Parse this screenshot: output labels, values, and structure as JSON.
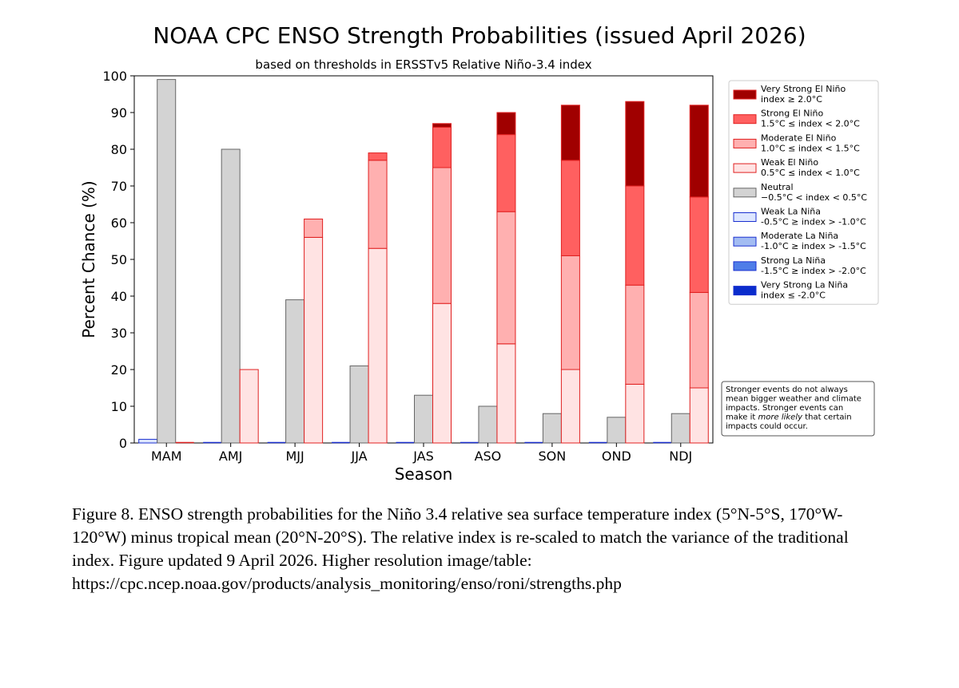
{
  "chart_data": {
    "type": "bar",
    "title": "NOAA CPC ENSO Strength Probabilities (issued April 2026)",
    "subtitle": "based on thresholds in ERSSTv5 Relative Niño-3.4 index",
    "xlabel": "Season",
    "ylabel": "Percent Chance (%)",
    "ylim": [
      0,
      100
    ],
    "yticks": [
      "0",
      "10",
      "20",
      "30",
      "40",
      "50",
      "60",
      "70",
      "80",
      "90",
      "100"
    ],
    "categories": [
      "MAM",
      "AMJ",
      "MJJ",
      "JJA",
      "JAS",
      "ASO",
      "SON",
      "OND",
      "NDJ"
    ],
    "grid": false,
    "legend_position": "right",
    "la_nina_series": [
      {
        "name": "Weak La Niña",
        "range": "-0.5°C ≥ index > -1.0°C",
        "color": "#dde6ff",
        "values": [
          1,
          0,
          0,
          0,
          0,
          0,
          0,
          0,
          0
        ]
      },
      {
        "name": "Moderate La Niña",
        "range": "-1.0°C ≥ index > -1.5°C",
        "color": "#a3bcf2",
        "values": [
          0,
          0,
          0,
          0,
          0,
          0,
          0,
          0,
          0
        ]
      },
      {
        "name": "Strong La Niña",
        "range": "-1.5°C ≥ index > -2.0°C",
        "color": "#4f7de8",
        "values": [
          0,
          0,
          0,
          0,
          0,
          0,
          0,
          0,
          0
        ]
      },
      {
        "name": "Very Strong La Niña",
        "range": "index ≤ -2.0°C",
        "color": "#0a2ccc",
        "values": [
          0,
          0,
          0,
          0,
          0,
          0,
          0,
          0,
          0
        ]
      }
    ],
    "neutral_series": {
      "name": "Neutral",
      "range": "−0.5°C < index < 0.5°C",
      "color": "#d3d3d3",
      "values": [
        99,
        80,
        39,
        21,
        13,
        10,
        8,
        7,
        8
      ]
    },
    "el_nino_series": [
      {
        "name": "Weak El Niño",
        "range": "0.5°C ≤ index < 1.0°C",
        "color": "#ffe3e3",
        "values": [
          0,
          20,
          56,
          53,
          38,
          27,
          20,
          16,
          15
        ]
      },
      {
        "name": "Moderate El Niño",
        "range": "1.0°C ≤ index < 1.5°C",
        "color": "#ffb0b0",
        "values": [
          0,
          0,
          5,
          24,
          37,
          36,
          31,
          27,
          26
        ]
      },
      {
        "name": "Strong El Niño",
        "range": "1.5°C ≤ index < 2.0°C",
        "color": "#ff6060",
        "values": [
          0,
          0,
          0,
          2,
          11,
          21,
          26,
          27,
          26
        ]
      },
      {
        "name": "Very Strong El Niño",
        "range": "index ≥ 2.0°C",
        "color": "#a00000",
        "values": [
          0,
          0,
          0,
          0,
          1,
          6,
          15,
          23,
          25
        ]
      }
    ],
    "legend_order": [
      "Very Strong El Niño",
      "Strong El Niño",
      "Moderate El Niño",
      "Weak El Niño",
      "Neutral",
      "Weak La Niña",
      "Moderate La Niña",
      "Strong La Niña",
      "Very Strong La Niña"
    ],
    "note_lines": [
      {
        "before": "Stronger events do not always",
        "italic": "",
        "after": ""
      },
      {
        "before": "mean bigger weather and climate",
        "italic": "",
        "after": ""
      },
      {
        "before": "impacts. Stronger events can",
        "italic": "",
        "after": ""
      },
      {
        "before": "make it ",
        "italic": "more likely",
        "after": " that certain"
      },
      {
        "before": "impacts could occur.",
        "italic": "",
        "after": ""
      }
    ]
  },
  "caption": "Figure 8. ENSO strength probabilities for the Niño 3.4 relative sea surface temperature index (5°N-5°S, 170°W-120°W) minus tropical mean (20°N-20°S). The relative index is re-scaled to match the variance of the traditional index. Figure updated 9 April 2026. Higher resolution image/table: https://cpc.ncep.noaa.gov/products/analysis_monitoring/enso/roni/strengths.php"
}
